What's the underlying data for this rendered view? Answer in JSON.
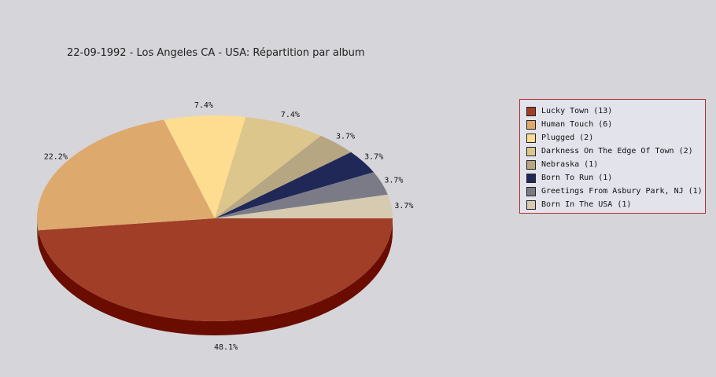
{
  "chart_data": {
    "type": "pie",
    "title": "22-09-1992 - Los Angeles CA - USA:  Répartition par album",
    "legend_position": "right",
    "slices": [
      {
        "label": "Lucky Town (13)",
        "value": 13,
        "percent_label": "48.1%",
        "color": "#a03e28"
      },
      {
        "label": "Human Touch (6)",
        "value": 6,
        "percent_label": "22.2%",
        "color": "#dea96d"
      },
      {
        "label": "Plugged (2)",
        "value": 2,
        "percent_label": "7.4%",
        "color": "#fedd90"
      },
      {
        "label": "Darkness On The Edge Of Town (2)",
        "value": 2,
        "percent_label": "7.4%",
        "color": "#dcc68c"
      },
      {
        "label": "Nebraska (1)",
        "value": 1,
        "percent_label": "3.7%",
        "color": "#b6a682"
      },
      {
        "label": "Born To Run (1)",
        "value": 1,
        "percent_label": "3.7%",
        "color": "#202858"
      },
      {
        "label": "Greetings From Asbury Park, NJ (1)",
        "value": 1,
        "percent_label": "3.7%",
        "color": "#7b7b88"
      },
      {
        "label": "Born In The USA (1)",
        "value": 1,
        "percent_label": "3.7%",
        "color": "#d6cbb0"
      }
    ],
    "depth_color": "#6a0c00"
  }
}
